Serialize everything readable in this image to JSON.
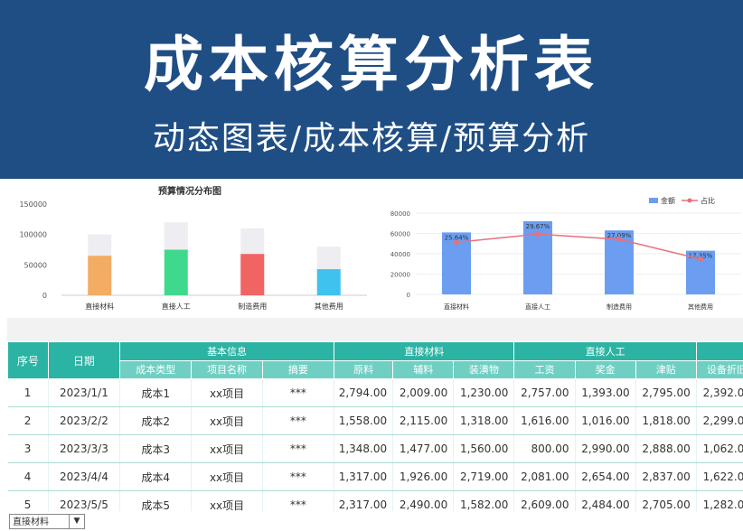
{
  "banner": {
    "title": "成本核算分析表",
    "subtitle": "动态图表/成本核算/预算分析"
  },
  "colors": {
    "banner": "#1f4e85",
    "header": "#2bb3a3",
    "subheader": "#6fcfc3"
  },
  "chart_data": [
    {
      "type": "bar",
      "title": "预算情况分布图",
      "categories": [
        "直接材料",
        "直接人工",
        "制造费用",
        "其他费用"
      ],
      "ylim": [
        0,
        150000
      ],
      "yticks": [
        "150000",
        "100000",
        "50000",
        "0"
      ],
      "series": [
        {
          "values": [
            100000,
            120000,
            110000,
            80000
          ]
        },
        {
          "values": [
            65000,
            75000,
            68000,
            43000
          ]
        }
      ],
      "bar_colors": [
        "#f2ac63",
        "#3ed98c",
        "#f06464",
        "#3fc3ee"
      ],
      "budget_color": "#eeeef2"
    },
    {
      "type": "bar",
      "categories": [
        "直接材料",
        "直接人工",
        "制造费用",
        "其他费用"
      ],
      "ylim": [
        0,
        80000
      ],
      "yticks": [
        "80000",
        "60000",
        "40000",
        "20000",
        "0"
      ],
      "series": [
        {
          "name": "金额",
          "values": [
            61000,
            72000,
            63000,
            43000
          ],
          "color": "#6b9ef0"
        },
        {
          "name": "占比",
          "values": [
            25.64,
            29.67,
            27.09,
            17.35
          ],
          "color": "#e8707a"
        }
      ],
      "data_labels": [
        "25.64%",
        "29.67%",
        "27.09%",
        "17.35%"
      ],
      "legend": "top-right"
    }
  ],
  "table": {
    "groups": {
      "seq": "序号",
      "date": "日期",
      "basic": "基本信息",
      "material": "直接材料",
      "labor": "直接人工"
    },
    "sub": {
      "type": "成本类型",
      "project": "项目名称",
      "abstract": "摘要",
      "raw": "原料",
      "aux": "辅料",
      "pack": "装潢物",
      "wage": "工资",
      "bonus": "奖金",
      "allowance": "津贴",
      "depreciation": "设备折旧"
    },
    "rows": [
      [
        "1",
        "2023/1/1",
        "成本1",
        "xx项目",
        "***",
        "2,794.00",
        "2,009.00",
        "1,230.00",
        "2,757.00",
        "1,393.00",
        "2,795.00",
        "2,392.00"
      ],
      [
        "2",
        "2023/2/2",
        "成本2",
        "xx项目",
        "***",
        "1,558.00",
        "2,115.00",
        "1,318.00",
        "1,616.00",
        "1,016.00",
        "1,818.00",
        "2,299.00"
      ],
      [
        "3",
        "2023/3/3",
        "成本3",
        "xx项目",
        "***",
        "1,348.00",
        "1,477.00",
        "1,560.00",
        "800.00",
        "2,990.00",
        "2,888.00",
        "1,062.00"
      ],
      [
        "4",
        "2023/4/4",
        "成本4",
        "xx项目",
        "***",
        "1,317.00",
        "1,926.00",
        "2,719.00",
        "2,081.00",
        "2,654.00",
        "2,837.00",
        "1,622.00"
      ],
      [
        "5",
        "2023/5/5",
        "成本5",
        "xx项目",
        "***",
        "2,317.00",
        "2,490.00",
        "1,582.00",
        "2,609.00",
        "2,484.00",
        "2,705.00",
        "1,282.00"
      ]
    ]
  },
  "dropdown": {
    "value": "直接材料",
    "arrow": "▼"
  }
}
